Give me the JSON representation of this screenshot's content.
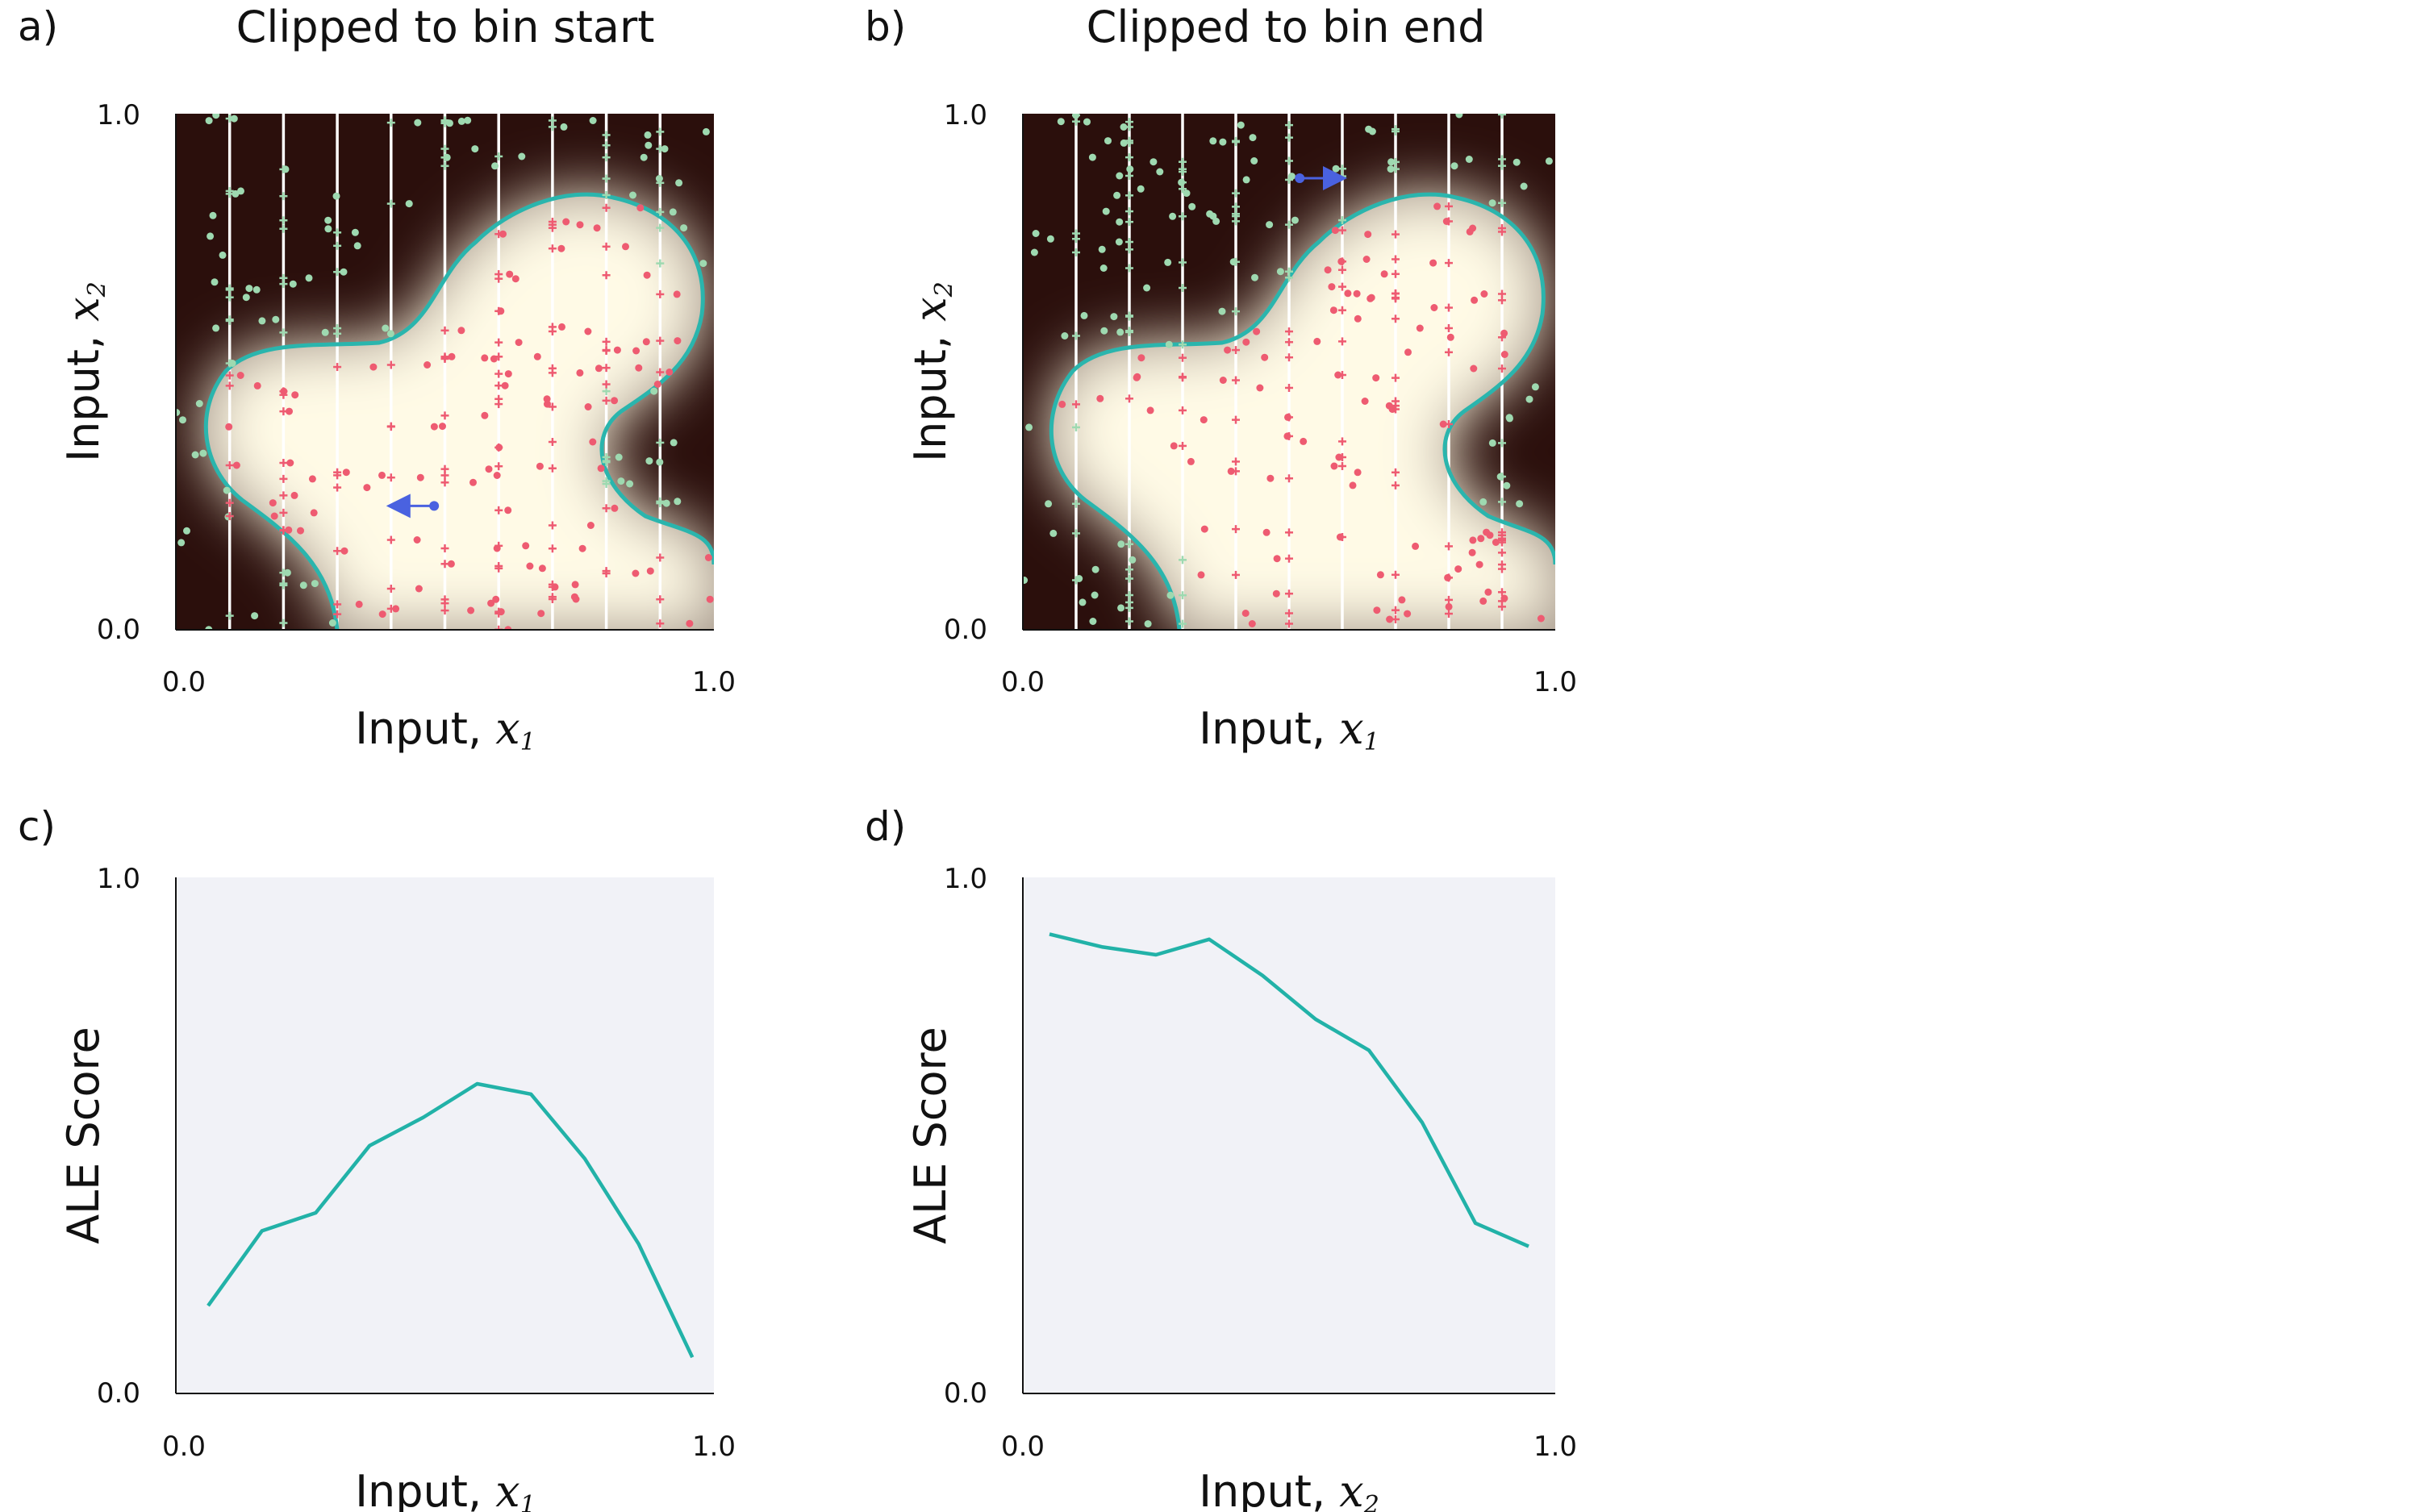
{
  "chart_data": [
    {
      "panel": "a)",
      "type": "scatter",
      "title": "Clipped to bin start",
      "xlabel": "Input,",
      "xvar": "x",
      "xsub": "1",
      "ylabel": "Input,",
      "yvar": "x",
      "ysub": "2",
      "xlim": [
        0.0,
        1.0
      ],
      "ylim": [
        0.0,
        1.0
      ],
      "x_ticks": [
        "0.0",
        "1.0"
      ],
      "y_ticks": [
        "0.0",
        "1.0"
      ],
      "bin_edges": [
        0.1,
        0.2,
        0.3,
        0.4,
        0.5,
        0.6,
        0.7,
        0.8,
        0.9
      ],
      "clip_to": "start",
      "arrow": {
        "from": [
          0.48,
          0.24
        ],
        "to": [
          0.4,
          0.24
        ]
      }
    },
    {
      "panel": "b)",
      "type": "scatter",
      "title": "Clipped to bin end",
      "xlabel": "Input,",
      "xvar": "x",
      "xsub": "1",
      "ylabel": "Input,",
      "yvar": "x",
      "ysub": "2",
      "xlim": [
        0.0,
        1.0
      ],
      "ylim": [
        0.0,
        1.0
      ],
      "x_ticks": [
        "0.0",
        "1.0"
      ],
      "y_ticks": [
        "0.0",
        "1.0"
      ],
      "bin_edges": [
        0.1,
        0.2,
        0.3,
        0.4,
        0.5,
        0.6,
        0.7,
        0.8,
        0.9
      ],
      "clip_to": "end",
      "arrow": {
        "from": [
          0.52,
          0.875
        ],
        "to": [
          0.6,
          0.875
        ]
      }
    },
    {
      "panel": "c)",
      "type": "line",
      "title": "",
      "xlabel": "Input,",
      "xvar": "x",
      "xsub": "1",
      "ylabel": "ALE Score",
      "xlim": [
        0.0,
        1.0
      ],
      "ylim": [
        0.0,
        1.0
      ],
      "x_ticks": [
        "0.0",
        "1.0"
      ],
      "y_ticks": [
        "0.0",
        "1.0"
      ],
      "x": [
        0.06,
        0.16,
        0.26,
        0.36,
        0.46,
        0.56,
        0.66,
        0.76,
        0.86,
        0.96
      ],
      "values": [
        0.17,
        0.315,
        0.35,
        0.48,
        0.535,
        0.6,
        0.58,
        0.455,
        0.29,
        0.07
      ]
    },
    {
      "panel": "d)",
      "type": "line",
      "title": "",
      "xlabel": "Input,",
      "xvar": "x",
      "xsub": "2",
      "ylabel": "ALE Score",
      "xlim": [
        0.0,
        1.0
      ],
      "ylim": [
        0.0,
        1.0
      ],
      "x_ticks": [
        "0.0",
        "1.0"
      ],
      "y_ticks": [
        "0.0",
        "1.0"
      ],
      "x": [
        0.05,
        0.15,
        0.25,
        0.35,
        0.45,
        0.55,
        0.65,
        0.75,
        0.85,
        0.95
      ],
      "values": [
        0.89,
        0.865,
        0.85,
        0.88,
        0.81,
        0.725,
        0.665,
        0.525,
        0.33,
        0.285
      ]
    }
  ],
  "colors": {
    "background_dark": "#2b0f0c",
    "background_light": "#fff9e2",
    "boundary": "#2ab5ad",
    "inside_points": "#ee5b71",
    "outside_points": "#9ed9b0",
    "arrow": "#4a62e0",
    "line": "#22b2a8",
    "line_plot_bg": "#f1f2f7",
    "bin_lines": "#ffffff"
  }
}
